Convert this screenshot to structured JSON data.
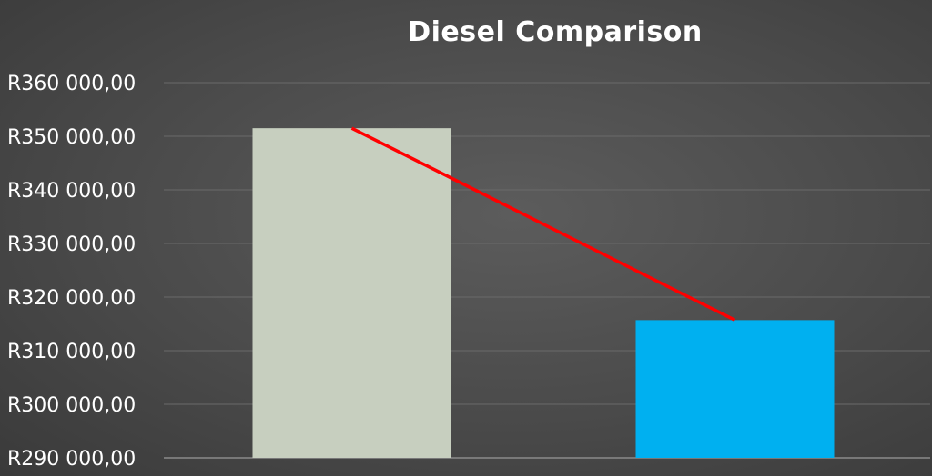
{
  "chart_data": {
    "type": "bar",
    "title": "Diesel Comparison",
    "categories": [
      "",
      ""
    ],
    "values": [
      351500,
      315700
    ],
    "bar_colors": [
      "#c7cfbf",
      "#00b0f0"
    ],
    "trend_line": {
      "values": [
        351500,
        315700
      ],
      "color": "#ff0000"
    },
    "ylim": [
      290000,
      360000
    ],
    "ytick_step": 10000,
    "ytick_labels": [
      "R290 000,00",
      "R300 000,00",
      "R310 000,00",
      "R320 000,00",
      "R330 000,00",
      "R340 000,00",
      "R350 000,00",
      "R360 000,00"
    ],
    "grid": true,
    "legend": "none",
    "xlabel": "",
    "ylabel": ""
  },
  "colors": {
    "background": "#4a4a4a",
    "gridline": "#6a6a6a",
    "text": "#ffffff"
  }
}
